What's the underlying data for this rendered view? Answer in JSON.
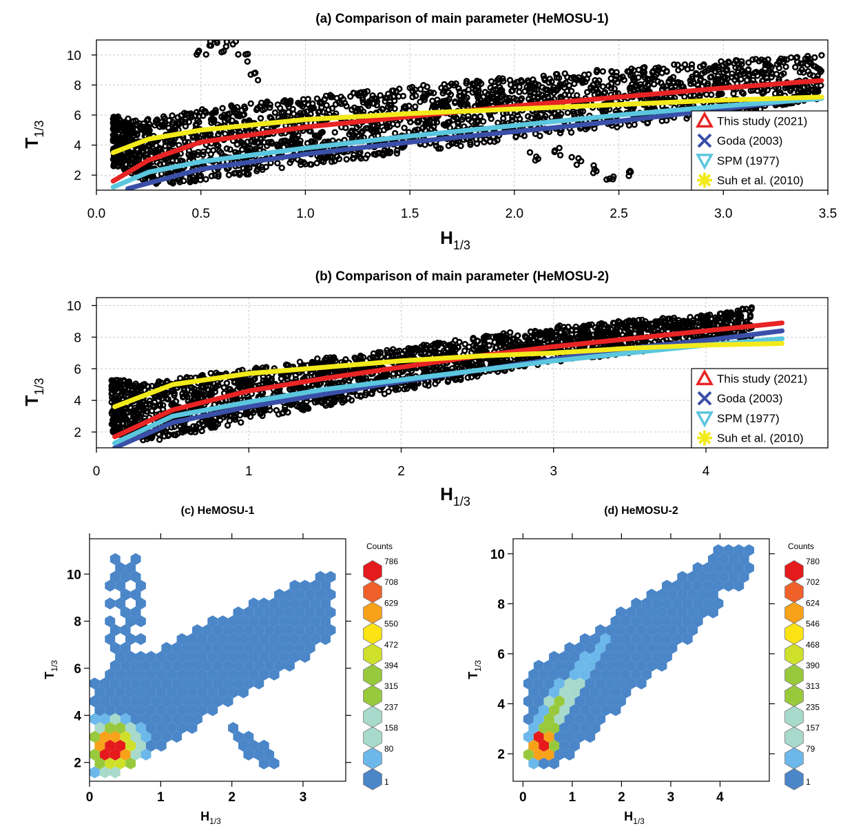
{
  "chart_data": [
    {
      "id": "a",
      "type": "scatter",
      "title": "(a) Comparison of main parameter (HeMOSU-1)",
      "xlabel": "H",
      "xlabel_sub": "1/3",
      "ylabel": "T",
      "ylabel_sub": "1/3",
      "xlim": [
        0,
        3.5
      ],
      "ylim": [
        1,
        11
      ],
      "x_ticks": [
        "0.0",
        "0.5",
        "1.0",
        "1.5",
        "2.0",
        "2.5",
        "3.0",
        "3.5"
      ],
      "y_ticks": [
        "2",
        "4",
        "6",
        "8",
        "10"
      ],
      "grid": true,
      "legend_position": "bottom-right",
      "legend": [
        "This study (2021)",
        "Goda (2003)",
        "SPM (1977)",
        "Suh et al. (2010)"
      ],
      "series": [
        {
          "name": "This study (2021)",
          "color": "#e82424",
          "x": [
            0.08,
            0.25,
            0.5,
            1.0,
            1.5,
            2.0,
            2.5,
            3.0,
            3.47
          ],
          "y": [
            1.6,
            3.0,
            4.2,
            5.2,
            5.9,
            6.6,
            7.2,
            7.8,
            8.3
          ]
        },
        {
          "name": "Goda (2003)",
          "color": "#3a4fa8",
          "x": [
            0.15,
            0.5,
            1.0,
            1.5,
            2.0,
            2.5,
            3.0,
            3.47
          ],
          "y": [
            1.1,
            2.4,
            3.4,
            4.2,
            4.9,
            5.6,
            6.4,
            7.2
          ]
        },
        {
          "name": "SPM (1977)",
          "color": "#5bc6de",
          "x": [
            0.08,
            0.25,
            0.5,
            1.0,
            1.5,
            2.0,
            2.5,
            3.0,
            3.47
          ],
          "y": [
            1.2,
            2.2,
            2.9,
            3.8,
            4.6,
            5.3,
            6.0,
            6.6,
            7.1
          ]
        },
        {
          "name": "Suh et al. (2010)",
          "color": "#f3ea1c",
          "x": [
            0.08,
            0.25,
            0.5,
            1.0,
            1.5,
            2.0,
            2.5,
            3.0,
            3.47
          ],
          "y": [
            3.5,
            4.4,
            5.0,
            5.7,
            6.1,
            6.4,
            6.7,
            7.0,
            7.2
          ]
        }
      ],
      "observed_outliers": {
        "x": [
          0.5,
          0.55,
          0.6,
          0.65,
          0.7,
          0.75,
          2.1,
          2.2,
          2.3,
          2.4,
          2.45,
          2.55
        ],
        "y": [
          10.2,
          10.8,
          10.5,
          10.9,
          9.8,
          8.5,
          3.2,
          3.5,
          3.0,
          2.4,
          1.8,
          2.1
        ]
      }
    },
    {
      "id": "b",
      "type": "scatter",
      "title": "(b) Comparison of main parameter (HeMOSU-2)",
      "xlabel": "H",
      "xlabel_sub": "1/3",
      "ylabel": "T",
      "ylabel_sub": "1/3",
      "xlim": [
        0,
        4.8
      ],
      "ylim": [
        1,
        10.5
      ],
      "x_ticks": [
        "0",
        "1",
        "2",
        "3",
        "4"
      ],
      "y_ticks": [
        "2",
        "4",
        "6",
        "8",
        "10"
      ],
      "grid": true,
      "legend_position": "bottom-right",
      "legend": [
        "This study (2021)",
        "Goda (2003)",
        "SPM (1977)",
        "Suh et al. (2010)"
      ],
      "series": [
        {
          "name": "This study (2021)",
          "color": "#e82424",
          "x": [
            0.12,
            0.5,
            1.0,
            1.5,
            2.0,
            2.5,
            3.0,
            3.5,
            4.0,
            4.5
          ],
          "y": [
            1.7,
            3.4,
            4.6,
            5.4,
            6.1,
            6.8,
            7.4,
            7.9,
            8.4,
            8.9
          ]
        },
        {
          "name": "Goda (2003)",
          "color": "#3a4fa8",
          "x": [
            0.12,
            0.5,
            1.0,
            1.5,
            2.0,
            2.5,
            3.0,
            3.5,
            4.0,
            4.5
          ],
          "y": [
            1.0,
            2.6,
            3.6,
            4.4,
            5.2,
            5.9,
            6.6,
            7.3,
            7.8,
            8.4
          ]
        },
        {
          "name": "SPM (1977)",
          "color": "#5bc6de",
          "x": [
            0.12,
            0.5,
            1.0,
            1.5,
            2.0,
            2.5,
            3.0,
            3.5,
            4.0,
            4.5
          ],
          "y": [
            1.3,
            3.0,
            3.9,
            4.7,
            5.3,
            5.9,
            6.5,
            7.0,
            7.5,
            7.9
          ]
        },
        {
          "name": "Suh et al. (2010)",
          "color": "#f3ea1c",
          "x": [
            0.12,
            0.5,
            1.0,
            1.5,
            2.0,
            2.5,
            3.0,
            3.5,
            4.0,
            4.5
          ],
          "y": [
            3.6,
            5.0,
            5.7,
            6.1,
            6.5,
            6.8,
            7.0,
            7.3,
            7.5,
            7.6
          ]
        }
      ]
    },
    {
      "id": "c",
      "type": "heatmap",
      "title": "(c) HeMOSU-1",
      "xlabel": "H",
      "xlabel_sub": "1/3",
      "ylabel": "T",
      "ylabel_sub": "1/3",
      "xlim": [
        0,
        3.6
      ],
      "ylim": [
        1.2,
        11.5
      ],
      "x_ticks": [
        "0",
        "1",
        "2",
        "3"
      ],
      "y_ticks": [
        "2",
        "4",
        "6",
        "8",
        "10"
      ],
      "legend_title": "Counts",
      "legend_levels": [
        "786",
        "708",
        "629",
        "550",
        "472",
        "394",
        "315",
        "237",
        "158",
        "80",
        "1"
      ]
    },
    {
      "id": "d",
      "type": "heatmap",
      "title": "(d) HeMOSU-2",
      "xlabel": "H",
      "xlabel_sub": "1/3",
      "ylabel": "T",
      "ylabel_sub": "1/3",
      "xlim": [
        -0.2,
        5.0
      ],
      "ylim": [
        0.9,
        10.6
      ],
      "x_ticks": [
        "0",
        "1",
        "2",
        "3",
        "4"
      ],
      "y_ticks": [
        "2",
        "4",
        "6",
        "8",
        "10"
      ],
      "legend_title": "Counts",
      "legend_levels": [
        "780",
        "702",
        "624",
        "546",
        "468",
        "390",
        "313",
        "235",
        "157",
        "79",
        "1"
      ]
    }
  ],
  "colors": {
    "heat_scale": [
      "#e41a1c",
      "#f0602a",
      "#f8a21a",
      "#fbe314",
      "#cfe02b",
      "#98c93c",
      "#98c93c",
      "#a8dacb",
      "#a8dacb",
      "#6cb8ea",
      "#4a86c8"
    ]
  }
}
